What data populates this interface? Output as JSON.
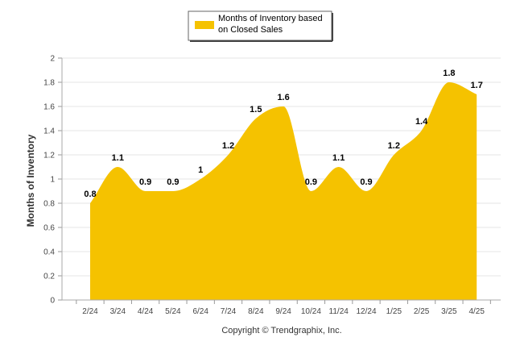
{
  "chart_data": {
    "type": "area",
    "categories": [
      "2/24",
      "3/24",
      "4/24",
      "5/24",
      "6/24",
      "7/24",
      "8/24",
      "9/24",
      "10/24",
      "11/24",
      "12/24",
      "1/25",
      "2/25",
      "3/25",
      "4/25"
    ],
    "series": [
      {
        "name_lines": [
          "Months of Inventory based",
          "on Closed Sales"
        ],
        "values": [
          0.8,
          1.1,
          0.9,
          0.9,
          1,
          1.2,
          1.5,
          1.6,
          0.9,
          1.1,
          0.9,
          1.2,
          1.4,
          1.8,
          1.7
        ],
        "labels": [
          "0.8",
          "1.1",
          "0.9",
          "0.9",
          "1",
          "1.2",
          "1.5",
          "1.6",
          "0.9",
          "1.1",
          "0.9",
          "1.2",
          "1.4",
          "1.8",
          "1.7"
        ],
        "color": "#f5c200"
      }
    ],
    "yticks": [
      "0",
      "0.2",
      "0.4",
      "0.6",
      "0.8",
      "1",
      "1.2",
      "1.4",
      "1.6",
      "1.8",
      "2"
    ],
    "ylim": [
      0,
      2
    ],
    "ylabel": "Months of Inventory",
    "xlabel": "",
    "grid": true,
    "legend_position": "top-center",
    "gridline_color": "#e6e6e6"
  },
  "footer": {
    "copyright": "Copyright © Trendgraphix, Inc."
  }
}
